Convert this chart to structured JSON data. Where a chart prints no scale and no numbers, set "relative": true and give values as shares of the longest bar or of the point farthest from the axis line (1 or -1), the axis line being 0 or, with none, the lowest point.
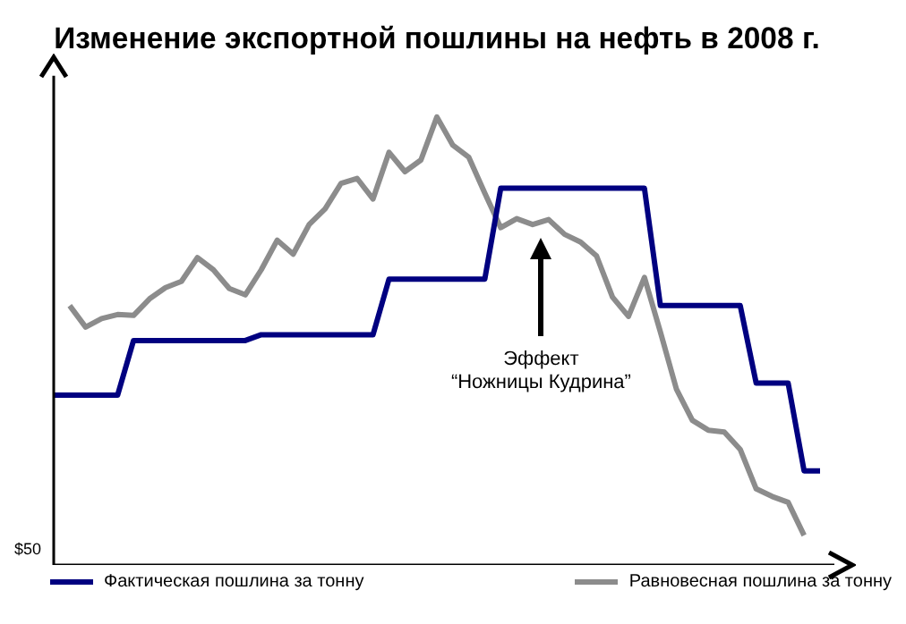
{
  "chart_data": {
    "type": "line",
    "title": "Изменение экспортной пошлины на нефть в 2008 г.",
    "relative": true,
    "legend": "bottom",
    "marker": "none",
    "line_style": "solid",
    "grid": false,
    "categories": [
      null,
      null,
      null,
      null,
      null,
      null,
      null,
      null,
      null,
      null,
      null,
      null,
      null,
      null,
      null,
      null,
      null,
      null,
      null,
      null,
      null,
      null,
      null,
      null,
      null,
      null,
      null,
      null,
      null,
      null,
      null,
      null,
      null,
      null,
      null,
      null,
      null,
      null,
      null,
      null,
      null,
      null,
      null,
      null,
      null,
      null,
      null,
      null,
      null
    ],
    "series": [
      {
        "name": "Фактическая пошлина за тонну",
        "color": "#000080",
        "values": [
          0.379,
          0.379,
          0.379,
          0.379,
          0.379,
          0.501,
          0.501,
          0.501,
          0.501,
          0.501,
          0.501,
          0.501,
          0.501,
          0.514,
          0.514,
          0.514,
          0.514,
          0.514,
          0.514,
          0.514,
          0.514,
          0.638,
          0.638,
          0.638,
          0.638,
          0.638,
          0.638,
          0.638,
          0.841,
          0.841,
          0.841,
          0.841,
          0.841,
          0.841,
          0.841,
          0.841,
          0.841,
          0.841,
          0.579,
          0.579,
          0.579,
          0.579,
          0.579,
          0.579,
          0.406,
          0.406,
          0.406,
          0.21,
          0.21
        ]
      },
      {
        "name": "Равновесная пошлина за тонну",
        "color": "#8c8c8c",
        "values": [
          null,
          0.579,
          0.531,
          0.55,
          0.559,
          0.557,
          0.594,
          0.619,
          0.633,
          0.686,
          0.659,
          0.617,
          0.603,
          0.659,
          0.725,
          0.694,
          0.76,
          0.795,
          0.852,
          0.863,
          0.817,
          0.921,
          0.878,
          0.904,
          1,
          0.937,
          0.91,
          0.83,
          0.753,
          0.773,
          0.76,
          0.771,
          0.738,
          0.721,
          0.69,
          0.598,
          0.555,
          0.642,
          0.52,
          0.393,
          0.323,
          0.301,
          0.297,
          0.258,
          0.17,
          0.153,
          0.14,
          0.066,
          null
        ]
      }
    ],
    "annotations": [
      "Эффект\n“Ножницы Кудрина”",
      "$50"
    ]
  }
}
